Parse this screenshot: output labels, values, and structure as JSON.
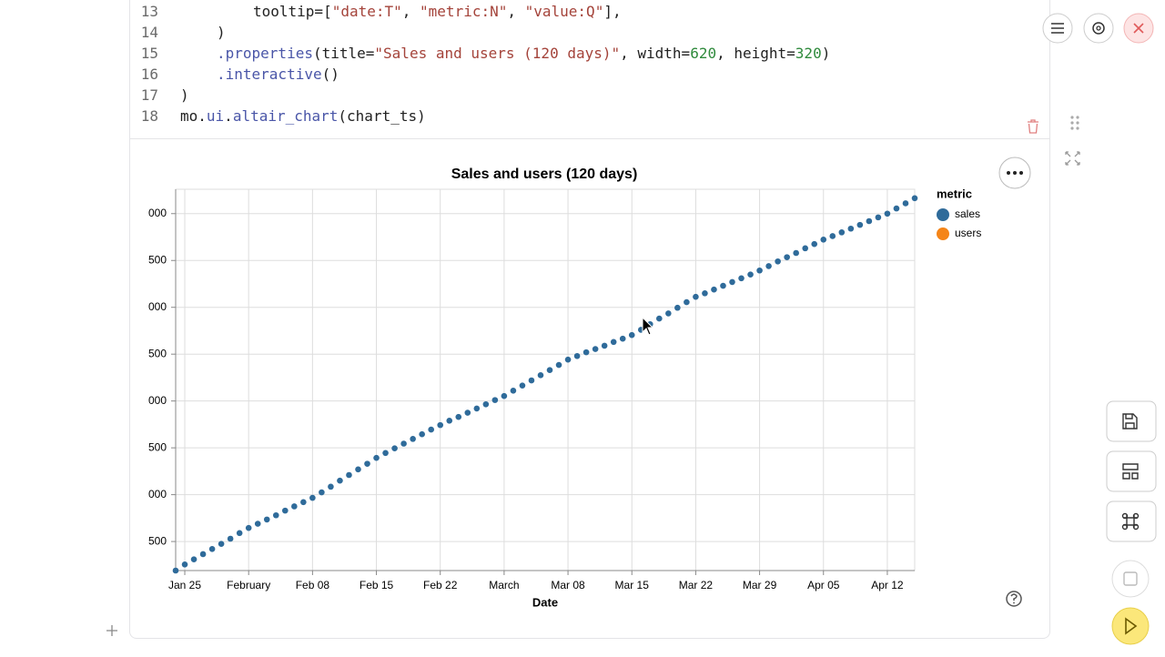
{
  "code": {
    "line_numbers": [
      13,
      14,
      15,
      16,
      17,
      18
    ],
    "lines": [
      [
        "tooltip=[",
        "\"date:T\"",
        ", ",
        "\"metric:N\"",
        ", ",
        "\"value:Q\"",
        "],"
      ],
      [
        ")"
      ],
      [
        ".properties",
        "(title=",
        "\"Sales and users (120 days)\"",
        ", width=",
        "620",
        ", height=",
        "320",
        ")"
      ],
      [
        ".interactive",
        "()"
      ],
      [
        ")"
      ],
      [
        "mo.",
        "ui",
        ".",
        "altair_chart",
        "(chart_ts)"
      ]
    ]
  },
  "chart_data": {
    "type": "scatter",
    "title": "Sales and users (120 days)",
    "x_label": "Date",
    "legend_title": "metric",
    "legend": "top-right",
    "grid": true,
    "x": [
      "Jan 24",
      "Jan 25",
      "Jan 26",
      "Jan 27",
      "Jan 28",
      "Jan 29",
      "Jan 30",
      "Jan 31",
      "Feb 01",
      "Feb 02",
      "Feb 03",
      "Feb 04",
      "Feb 05",
      "Feb 06",
      "Feb 07",
      "Feb 08",
      "Feb 09",
      "Feb 10",
      "Feb 11",
      "Feb 12",
      "Feb 13",
      "Feb 14",
      "Feb 15",
      "Feb 16",
      "Feb 17",
      "Feb 18",
      "Feb 19",
      "Feb 20",
      "Feb 21",
      "Feb 22",
      "Feb 23",
      "Feb 24",
      "Feb 25",
      "Feb 26",
      "Feb 27",
      "Feb 28",
      "Mar 01",
      "Mar 02",
      "Mar 03",
      "Mar 04",
      "Mar 05",
      "Mar 06",
      "Mar 07",
      "Mar 08",
      "Mar 09",
      "Mar 10",
      "Mar 11",
      "Mar 12",
      "Mar 13",
      "Mar 14",
      "Mar 15",
      "Mar 16",
      "Mar 17",
      "Mar 18",
      "Mar 19",
      "Mar 20",
      "Mar 21",
      "Mar 22",
      "Mar 23",
      "Mar 24",
      "Mar 25",
      "Mar 26",
      "Mar 27",
      "Mar 28",
      "Mar 29",
      "Mar 30",
      "Mar 31",
      "Apr 01",
      "Apr 02",
      "Apr 03",
      "Apr 04",
      "Apr 05",
      "Apr 06",
      "Apr 07",
      "Apr 08",
      "Apr 09",
      "Apr 10",
      "Apr 11",
      "Apr 12",
      "Apr 13",
      "Apr 14",
      "Apr 15"
    ],
    "series": [
      {
        "name": "sales",
        "color": "#2f6b9a",
        "values": [
          190,
          255,
          310,
          365,
          420,
          475,
          530,
          590,
          645,
          690,
          735,
          780,
          830,
          875,
          920,
          966,
          1025,
          1085,
          1150,
          1210,
          1270,
          1330,
          1393,
          1445,
          1495,
          1545,
          1595,
          1645,
          1695,
          1743,
          1790,
          1830,
          1875,
          1920,
          1965,
          2010,
          2053,
          2110,
          2165,
          2220,
          2275,
          2330,
          2385,
          2442,
          2480,
          2520,
          2555,
          2590,
          2630,
          2665,
          2704,
          2760,
          2820,
          2880,
          2935,
          2995,
          3055,
          3112,
          3150,
          3190,
          3230,
          3270,
          3310,
          3350,
          3393,
          3440,
          3490,
          3535,
          3580,
          3630,
          3675,
          3723,
          3760,
          3800,
          3840,
          3880,
          3920,
          3960,
          4000,
          4055,
          4110,
          4165
        ]
      },
      {
        "name": "users",
        "color": "#f58518"
      }
    ],
    "xlim": [
      "Jan 24",
      "Apr 15"
    ],
    "xticks": [
      "Jan 25",
      {
        "value": "Feb 01",
        "label": "February"
      },
      "Feb 08",
      "Feb 15",
      "Feb 22",
      {
        "value": "Mar 01",
        "label": "March"
      },
      "Mar 08",
      "Mar 15",
      "Mar 22",
      "Mar 29",
      "Apr 05",
      "Apr 12"
    ],
    "ylim": [
      190,
      4260
    ],
    "yticks": [
      500,
      {
        "value": 1000,
        "label": "000"
      },
      {
        "value": 1500,
        "label": "500"
      },
      {
        "value": 2000,
        "label": "000"
      },
      {
        "value": 2500,
        "label": "500"
      },
      {
        "value": 3000,
        "label": "000"
      },
      {
        "value": 3500,
        "label": "500"
      },
      {
        "value": 4000,
        "label": "000"
      }
    ]
  }
}
